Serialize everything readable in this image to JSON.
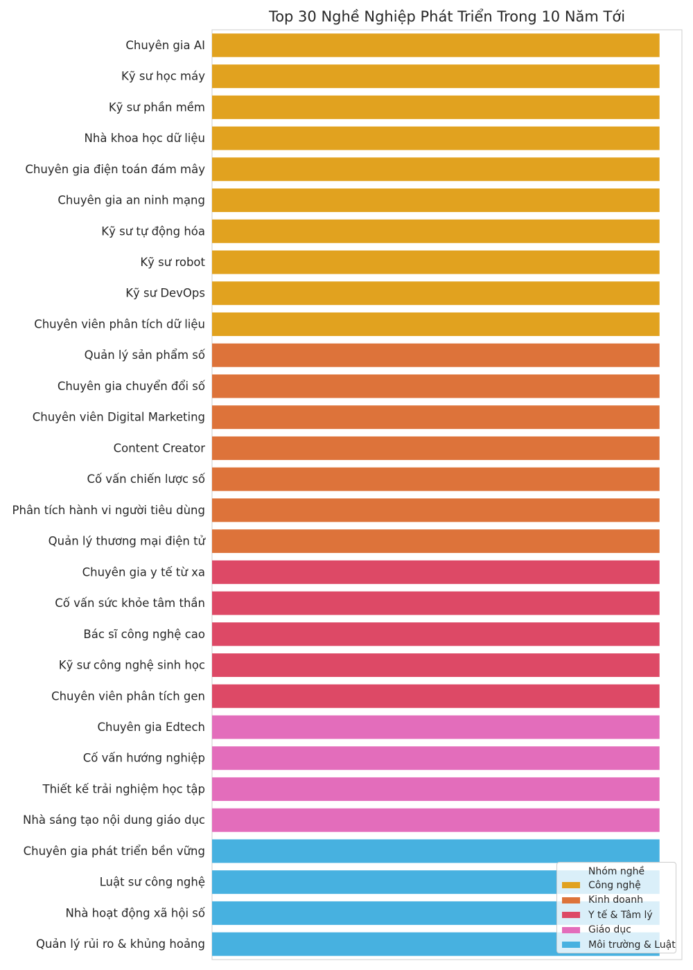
{
  "chart_data": {
    "type": "bar",
    "orientation": "horizontal",
    "title": "Top 30 Nghề Nghiệp Phát Triển Trong 10 Năm Tới",
    "xlabel": "",
    "ylabel": "",
    "grid": false,
    "legend_position": "bottom-right",
    "legend_title": "Nhóm nghề",
    "groups": [
      {
        "name": "Công nghệ",
        "color": "#E1A21F"
      },
      {
        "name": "Kinh doanh",
        "color": "#DD733A"
      },
      {
        "name": "Y tế & Tâm lý",
        "color": "#DD4966"
      },
      {
        "name": "Giáo dục",
        "color": "#E36DBB"
      },
      {
        "name": "Môi trường & Luật",
        "color": "#47B1E0"
      }
    ],
    "categories": [
      "Chuyên gia AI",
      "Kỹ sư học máy",
      "Kỹ sư phần mềm",
      "Nhà khoa học dữ liệu",
      "Chuyên gia điện toán đám mây",
      "Chuyên gia an ninh mạng",
      "Kỹ sư tự động hóa",
      "Kỹ sư robot",
      "Kỹ sư DevOps",
      "Chuyên viên phân tích dữ liệu",
      "Quản lý sản phẩm số",
      "Chuyên gia chuyển đổi số",
      "Chuyên viên Digital Marketing",
      "Content Creator",
      "Cố vấn chiến lược số",
      "Phân tích hành vi người tiêu dùng",
      "Quản lý thương mại điện tử",
      "Chuyên gia y tế từ xa",
      "Cố vấn sức khỏe tâm thần",
      "Bác sĩ công nghệ cao",
      "Kỹ sư công nghệ sinh học",
      "Chuyên viên phân tích gen",
      "Chuyên gia Edtech",
      "Cố vấn hướng nghiệp",
      "Thiết kế trải nghiệm học tập",
      "Nhà sáng tạo nội dung giáo dục",
      "Chuyên gia phát triển bền vững",
      "Luật sư công nghệ",
      "Nhà hoạt động xã hội số",
      "Quản lý rủi ro & khủng hoảng"
    ],
    "category_groups": [
      0,
      0,
      0,
      0,
      0,
      0,
      0,
      0,
      0,
      0,
      1,
      1,
      1,
      1,
      1,
      1,
      1,
      2,
      2,
      2,
      2,
      2,
      3,
      3,
      3,
      3,
      4,
      4,
      4,
      4
    ],
    "values": [
      1,
      1,
      1,
      1,
      1,
      1,
      1,
      1,
      1,
      1,
      1,
      1,
      1,
      1,
      1,
      1,
      1,
      1,
      1,
      1,
      1,
      1,
      1,
      1,
      1,
      1,
      1,
      1,
      1,
      1
    ],
    "xlim": [
      0,
      1.05
    ]
  }
}
